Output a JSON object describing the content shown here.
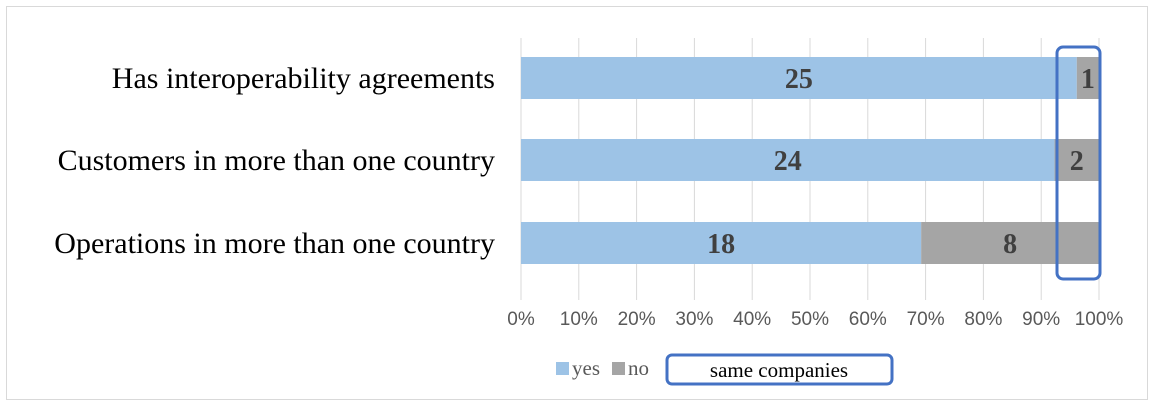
{
  "chart_data": {
    "type": "bar",
    "orientation": "horizontal",
    "stacking": "percent",
    "categories": [
      "Has interoperability agreements",
      "Customers in more than one country",
      "Operations in more than one country"
    ],
    "series": [
      {
        "name": "yes",
        "values": [
          25,
          24,
          18
        ],
        "color": "#9dc3e6"
      },
      {
        "name": "no",
        "values": [
          1,
          2,
          8
        ],
        "color": "#a5a5a5"
      }
    ],
    "xlim": [
      0,
      100
    ],
    "x_ticks": [
      "0%",
      "10%",
      "20%",
      "30%",
      "40%",
      "50%",
      "60%",
      "70%",
      "80%",
      "90%",
      "100%"
    ],
    "grid": "vertical",
    "legend": "bottom",
    "annotation": {
      "text": "same companies",
      "color": "#4472c4"
    }
  }
}
